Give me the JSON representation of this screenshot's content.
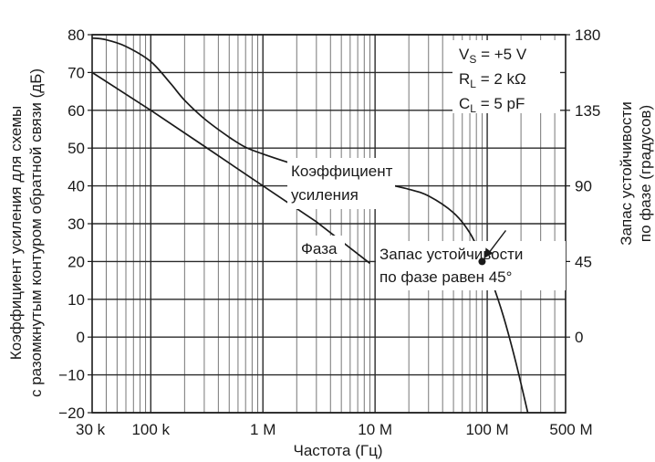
{
  "chart_data": {
    "type": "line",
    "x_scale": "log",
    "xlim": [
      30000,
      500000000
    ],
    "ylim": [
      -20,
      80
    ],
    "y2lim": [
      -45,
      180
    ],
    "grid": true,
    "xlabel": "Частота (Гц)",
    "ylabel_line1": "Коэффициент усиления для схемы",
    "ylabel_line2": "с разомкнутым контуром обратной связи (дБ)",
    "y2label_line1": "Запас устойчивости",
    "y2label_line2": "по фазе (градусов)",
    "x_ticks": [
      {
        "value": 30000,
        "label": "30 k"
      },
      {
        "value": 100000,
        "label": "100 k"
      },
      {
        "value": 1000000,
        "label": "1 M"
      },
      {
        "value": 10000000,
        "label": "10 M"
      },
      {
        "value": 100000000,
        "label": "100 M"
      },
      {
        "value": 500000000,
        "label": "500 M"
      }
    ],
    "y_ticks": [
      {
        "value": 80,
        "label": "80"
      },
      {
        "value": 70,
        "label": "70"
      },
      {
        "value": 60,
        "label": "60"
      },
      {
        "value": 50,
        "label": "50"
      },
      {
        "value": 40,
        "label": "40"
      },
      {
        "value": 30,
        "label": "30"
      },
      {
        "value": 20,
        "label": "20"
      },
      {
        "value": 10,
        "label": "10"
      },
      {
        "value": 0,
        "label": "0"
      },
      {
        "value": -10,
        "label": "−10"
      },
      {
        "value": -20,
        "label": "−20"
      }
    ],
    "y2_ticks": [
      {
        "value": 180,
        "label": "180"
      },
      {
        "value": 135,
        "label": "135"
      },
      {
        "value": 90,
        "label": "90"
      },
      {
        "value": 45,
        "label": "45"
      },
      {
        "value": 0,
        "label": "0"
      }
    ],
    "series": [
      {
        "name": "Коэффициент усиления",
        "axis": "left",
        "x": [
          30000,
          100000,
          300000,
          1000000,
          3000000,
          9000000
        ],
        "y": [
          70,
          60,
          50.5,
          40,
          30.5,
          19.5
        ]
      },
      {
        "name": "Фаза",
        "axis": "right",
        "x": [
          30000,
          40000,
          60000,
          100000,
          150000,
          200000,
          300000,
          500000,
          700000,
          1000000,
          2000000,
          3000000,
          5000000,
          10000000,
          20000000,
          30000000,
          50000000,
          70000000,
          90000000,
          110000000,
          140000000,
          180000000,
          230000000
        ],
        "y": [
          178,
          177,
          173,
          164,
          151,
          141,
          130,
          119,
          113,
          109,
          102.5,
          100,
          96.5,
          92.5,
          88,
          84,
          74,
          62,
          47,
          33,
          12,
          -15,
          -45
        ]
      }
    ],
    "params": {
      "line1_main": "V",
      "line1_sub": "S",
      "line1_rest": " = +5 V",
      "line2_main": "R",
      "line2_sub": "L",
      "line2_rest": " = 2 kΩ",
      "line3_main": "C",
      "line3_sub": "L",
      "line3_rest": " = 5 pF"
    },
    "annotations": {
      "gain_label_line1": "Коэффициент",
      "gain_label_line2": "усиления",
      "phase_label": "Фаза",
      "margin_line1": "Запас устойчивости",
      "margin_line2": "по фазе равен 45°",
      "marker": {
        "x": 90000000,
        "phase": 45
      }
    }
  }
}
